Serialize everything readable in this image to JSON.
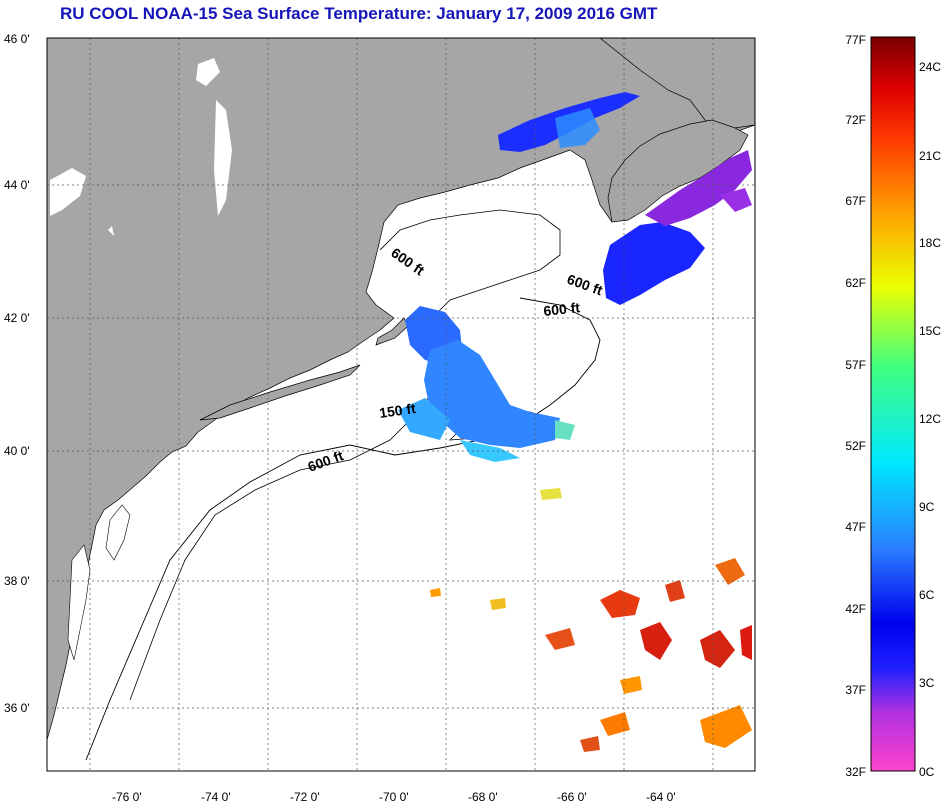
{
  "title": "RU COOL  NOAA-15  Sea Surface Temperature:  January 17, 2009 2016 GMT",
  "map": {
    "lat_ticks": [
      "46 0'",
      "44 0'",
      "42 0'",
      "40 0'",
      "38 0'",
      "36 0'"
    ],
    "lon_ticks": [
      "-76 0'",
      "-74 0'",
      "-72 0'",
      "-70 0'",
      "-68 0'",
      "-66 0'",
      "-64 0'"
    ],
    "contour_labels": [
      "600 ft",
      "600 ft",
      "600 ft",
      "150 ft",
      "600 ft"
    ],
    "colors": {
      "land": "#a6a6a6",
      "ocean": "#ffffff",
      "grid": "#555555"
    }
  },
  "colorbar": {
    "fahrenheit_labels": [
      "77F",
      "72F",
      "67F",
      "62F",
      "57F",
      "52F",
      "47F",
      "42F",
      "37F",
      "32F"
    ],
    "celsius_labels": [
      "24C",
      "21C",
      "18C",
      "15C",
      "12C",
      "9C",
      "6C",
      "3C",
      "0C"
    ],
    "range_f": [
      32,
      77
    ],
    "range_c": [
      0,
      25
    ]
  }
}
